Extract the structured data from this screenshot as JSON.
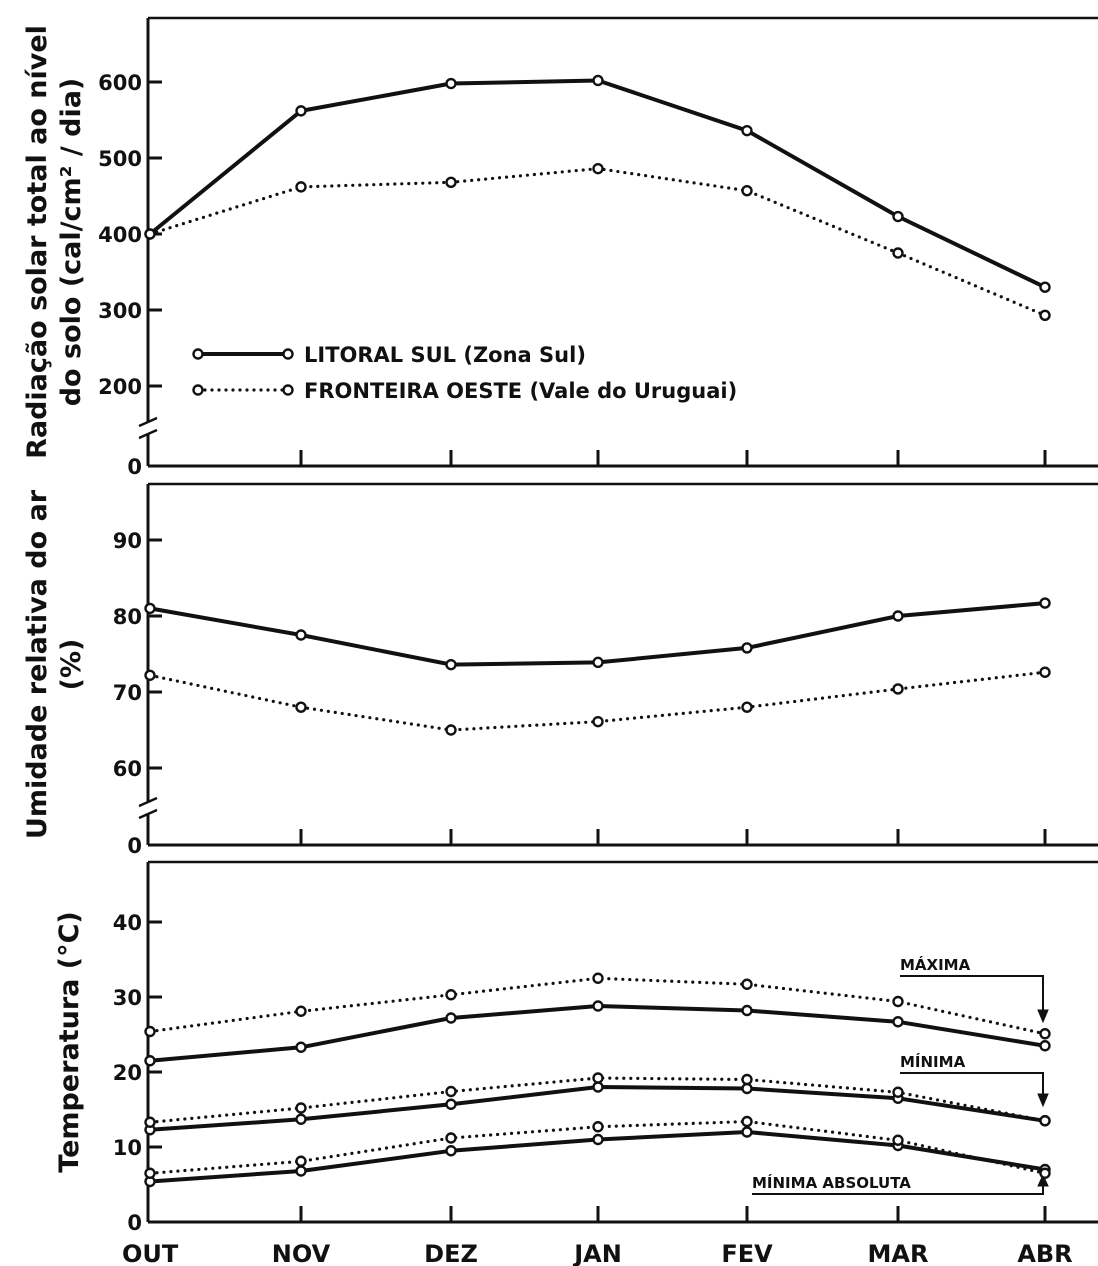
{
  "chart_data": {
    "type": "line",
    "categories": [
      "OUT",
      "NOV",
      "DEZ",
      "JAN",
      "FEV",
      "MAR",
      "ABR"
    ],
    "legend": [
      {
        "label": "LITORAL SUL (Zona Sul)",
        "style": "solid"
      },
      {
        "label": "FRONTEIRA OESTE (Vale do Uruguai)",
        "style": "dotted"
      }
    ],
    "panels": [
      {
        "id": "radiacao",
        "ylabel_lines": [
          "Radiação solar total ao nível",
          "do solo (cal/cm² / dia)"
        ],
        "yticks": [
          0,
          200,
          300,
          400,
          500,
          600
        ],
        "ytick_labels": [
          "0",
          "200",
          "300",
          "400",
          "500",
          "600"
        ],
        "axis_break": true,
        "series": [
          {
            "name": "LITORAL SUL (Zona Sul)",
            "style": "solid",
            "values": [
              400,
              562,
              598,
              602,
              536,
              423,
              330
            ]
          },
          {
            "name": "FRONTEIRA OESTE (Vale do Uruguai)",
            "style": "dotted",
            "values": [
              400,
              462,
              468,
              486,
              457,
              375,
              293
            ]
          }
        ]
      },
      {
        "id": "umidade",
        "ylabel_lines": [
          "Umidade relativa do ar",
          "(%)"
        ],
        "yticks": [
          0,
          60,
          70,
          80,
          90
        ],
        "ytick_labels": [
          "0",
          "60",
          "70",
          "80",
          "90"
        ],
        "axis_break": true,
        "series": [
          {
            "name": "LITORAL SUL (Zona Sul)",
            "style": "solid",
            "values": [
              81,
              77.5,
              73.6,
              73.9,
              75.8,
              80,
              81.7
            ]
          },
          {
            "name": "FRONTEIRA OESTE (Vale do Uruguai)",
            "style": "dotted",
            "values": [
              72.2,
              68,
              65,
              66.1,
              68,
              70.4,
              72.6
            ]
          }
        ]
      },
      {
        "id": "temperatura",
        "ylabel_lines": [
          "Temperatura  (°C)"
        ],
        "yticks": [
          0,
          10,
          20,
          30,
          40
        ],
        "ytick_labels": [
          "0",
          "10",
          "20",
          "30",
          "40"
        ],
        "axis_break": false,
        "series": [
          {
            "name": "LITORAL SUL (Zona Sul)",
            "style": "solid",
            "group": "MÁXIMA",
            "values": [
              21.5,
              23.3,
              27.2,
              28.8,
              28.2,
              26.7,
              23.5
            ]
          },
          {
            "name": "FRONTEIRA OESTE (Vale do Uruguai)",
            "style": "dotted",
            "group": "MÁXIMA",
            "values": [
              25.4,
              28.1,
              30.3,
              32.5,
              31.7,
              29.4,
              25.1
            ]
          },
          {
            "name": "LITORAL SUL (Zona Sul)",
            "style": "solid",
            "group": "MÍNIMA",
            "values": [
              12.3,
              13.7,
              15.7,
              18,
              17.8,
              16.5,
              13.5
            ]
          },
          {
            "name": "FRONTEIRA OESTE (Vale do Uruguai)",
            "style": "dotted",
            "group": "MÍNIMA",
            "values": [
              13.3,
              15.2,
              17.4,
              19.2,
              19,
              17.3,
              13.5
            ]
          },
          {
            "name": "LITORAL SUL (Zona Sul)",
            "style": "solid",
            "group": "MÍNIMA ABSOLUTA",
            "values": [
              5.4,
              6.8,
              9.5,
              11,
              12,
              10.2,
              7
            ]
          },
          {
            "name": "FRONTEIRA OESTE (Vale do Uruguai)",
            "style": "dotted",
            "group": "MÍNIMA ABSOLUTA",
            "values": [
              6.5,
              8.1,
              11.2,
              12.7,
              13.4,
              10.9,
              6.5
            ]
          }
        ],
        "annotations": [
          "MÁXIMA",
          "MÍNIMA",
          "MÍNIMA ABSOLUTA"
        ]
      }
    ]
  }
}
